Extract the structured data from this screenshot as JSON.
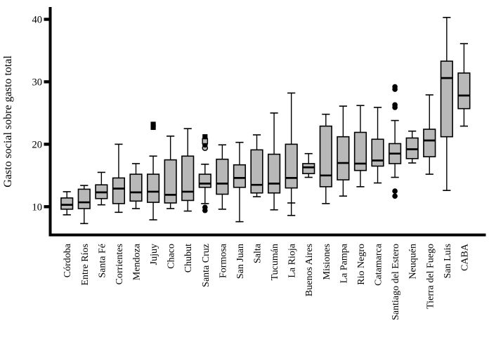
{
  "chart_data": {
    "type": "boxplot",
    "title": "",
    "ylabel": "Gasto social sobre gasto total",
    "xlabel": "",
    "yticks": [
      10,
      20,
      30,
      40
    ],
    "ylim": [
      5.5,
      42
    ],
    "grid": false,
    "legend": "none",
    "colors": {
      "box_fill": "#b8b8b8",
      "stroke": "#000000",
      "background": "#ffffff"
    },
    "categories": [
      {
        "label": "Córdoba",
        "lo": 8.7,
        "q1": 9.6,
        "med": 10.3,
        "q3": 11.4,
        "hi": 12.4
      },
      {
        "label": "Entre Ríos",
        "lo": 7.3,
        "q1": 9.7,
        "med": 10.7,
        "q3": 12.8,
        "hi": 13.4
      },
      {
        "label": "Santa Fé",
        "lo": 10.3,
        "q1": 11.3,
        "med": 12.3,
        "q3": 13.5,
        "hi": 15.5
      },
      {
        "label": "Corrientes",
        "lo": 9.1,
        "q1": 10.5,
        "med": 12.9,
        "q3": 14.6,
        "hi": 20.0
      },
      {
        "label": "Mendoza",
        "lo": 9.7,
        "q1": 10.9,
        "med": 12.3,
        "q3": 15.2,
        "hi": 16.9
      },
      {
        "label": "Jujuy",
        "lo": 7.9,
        "q1": 10.7,
        "med": 12.4,
        "q3": 15.2,
        "hi": 18.1,
        "out_hi": [
          {
            "v": 22.7,
            "m": "sq"
          },
          {
            "v": 23.2,
            "m": "sq"
          }
        ]
      },
      {
        "label": "Chaco",
        "lo": 9.7,
        "q1": 10.6,
        "med": 11.9,
        "q3": 17.5,
        "hi": 21.3
      },
      {
        "label": "Chubut",
        "lo": 9.3,
        "q1": 11.0,
        "med": 12.4,
        "q3": 18.1,
        "hi": 22.5
      },
      {
        "label": "Santa Cruz",
        "lo": 10.5,
        "q1": 13.1,
        "med": 13.7,
        "q3": 15.2,
        "hi": 16.8,
        "out_hi": [
          {
            "v": 19.4,
            "m": "c-gray"
          },
          {
            "v": 19.9,
            "m": "c"
          },
          {
            "v": 20.5,
            "m": "sq-gray"
          },
          {
            "v": 21.2,
            "m": "sq"
          }
        ],
        "out_lo": [
          {
            "v": 9.4,
            "m": "c"
          },
          {
            "v": 9.9,
            "m": "c"
          }
        ]
      },
      {
        "label": "Formosa",
        "lo": 9.6,
        "q1": 12.0,
        "med": 13.7,
        "q3": 17.6,
        "hi": 19.9
      },
      {
        "label": "San Juan",
        "lo": 7.6,
        "q1": 13.1,
        "med": 14.6,
        "q3": 16.7,
        "hi": 20.3
      },
      {
        "label": "Salta",
        "lo": 11.6,
        "q1": 12.2,
        "med": 13.5,
        "q3": 19.1,
        "hi": 21.5
      },
      {
        "label": "Tucumán",
        "lo": 9.5,
        "q1": 12.2,
        "med": 13.7,
        "q3": 18.4,
        "hi": 25.0
      },
      {
        "label": "La Rioja",
        "lo": 8.6,
        "q1": 13.0,
        "med": 14.6,
        "q3": 20.0,
        "hi": 28.2,
        "caps_lo": [
          10.6,
          8.6
        ]
      },
      {
        "label": "Buenos Aires",
        "lo": 14.7,
        "q1": 15.3,
        "med": 16.3,
        "q3": 16.9,
        "hi": 18.5
      },
      {
        "label": "Misiones",
        "lo": 10.5,
        "q1": 13.2,
        "med": 15.0,
        "q3": 22.9,
        "hi": 24.8
      },
      {
        "label": "La Pampa",
        "lo": 11.7,
        "q1": 14.3,
        "med": 17.0,
        "q3": 21.2,
        "hi": 26.1
      },
      {
        "label": "Rio Negro",
        "lo": 13.2,
        "q1": 15.8,
        "med": 16.9,
        "q3": 21.9,
        "hi": 26.2
      },
      {
        "label": "Catamarca",
        "lo": 13.8,
        "q1": 16.5,
        "med": 17.4,
        "q3": 20.8,
        "hi": 25.9
      },
      {
        "label": "Santiago del Estero",
        "lo": 14.7,
        "q1": 16.9,
        "med": 18.5,
        "q3": 20.1,
        "hi": 23.8,
        "out_hi": [
          {
            "v": 25.9,
            "m": "c"
          },
          {
            "v": 26.3,
            "m": "c"
          },
          {
            "v": 28.8,
            "m": "c"
          },
          {
            "v": 29.2,
            "m": "c"
          }
        ],
        "out_lo": [
          {
            "v": 11.7,
            "m": "c"
          },
          {
            "v": 12.5,
            "m": "c"
          }
        ]
      },
      {
        "label": "Neuquén",
        "lo": 17.0,
        "q1": 17.7,
        "med": 19.2,
        "q3": 21.0,
        "hi": 22.1
      },
      {
        "label": "Tierra del Fuego",
        "lo": 15.2,
        "q1": 18.0,
        "med": 20.6,
        "q3": 22.4,
        "hi": 27.9
      },
      {
        "label": "San Luis",
        "lo": 12.6,
        "q1": 21.2,
        "med": 30.6,
        "q3": 33.3,
        "hi": 40.3
      },
      {
        "label": "CABA",
        "lo": 22.9,
        "q1": 25.7,
        "med": 27.8,
        "q3": 31.4,
        "hi": 36.1
      }
    ]
  }
}
